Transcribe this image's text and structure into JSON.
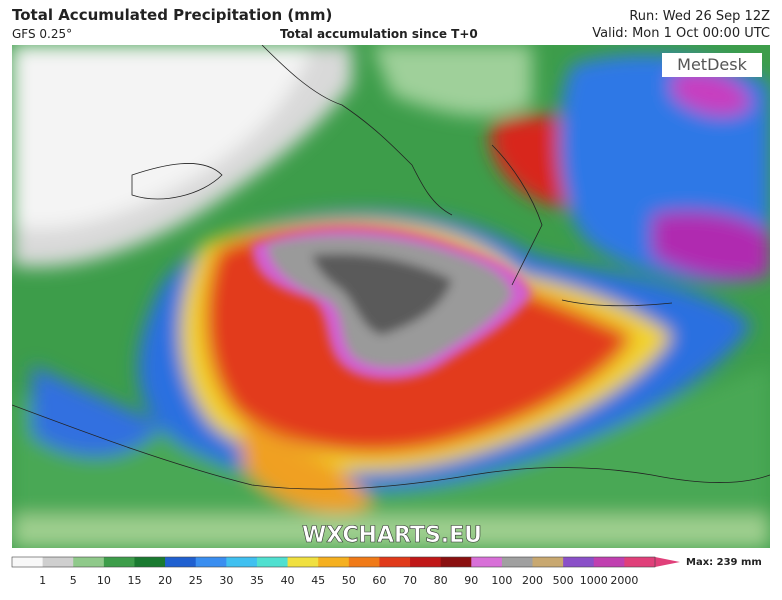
{
  "header": {
    "title": "Total Accumulated Precipitation (mm)",
    "model": "GFS 0.25°",
    "subtitle": "Total accumulation since T+0",
    "run": "Run: Wed 26 Sep 12Z",
    "valid": "Valid: Mon 1 Oct 00:00 UTC"
  },
  "map": {
    "brand": "MetDesk",
    "watermark": "WXCHARTS.EU"
  },
  "legend": {
    "labels": [
      1,
      5,
      10,
      15,
      20,
      25,
      30,
      35,
      40,
      45,
      50,
      60,
      70,
      80,
      90,
      100,
      200,
      500,
      1000,
      2000
    ],
    "max": "Max: 239 mm"
  }
}
